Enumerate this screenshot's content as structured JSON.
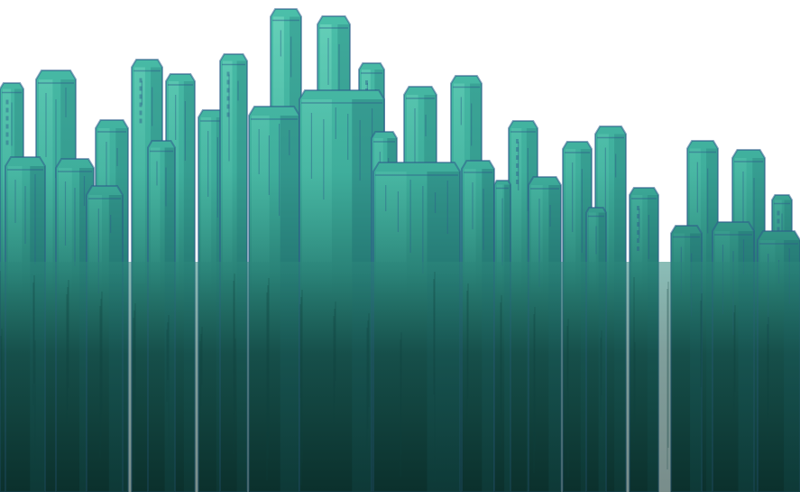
{
  "image": {
    "subject": "city-skyline-illustration",
    "style": "hand-drawn",
    "palette": {
      "sky": "#ffffff",
      "building_light": "#56c3ae",
      "building_mid": "#2f9c8e",
      "building_dark": "#0f4a45",
      "ground": "#0b302c",
      "outline": "#2d5d8a"
    }
  }
}
